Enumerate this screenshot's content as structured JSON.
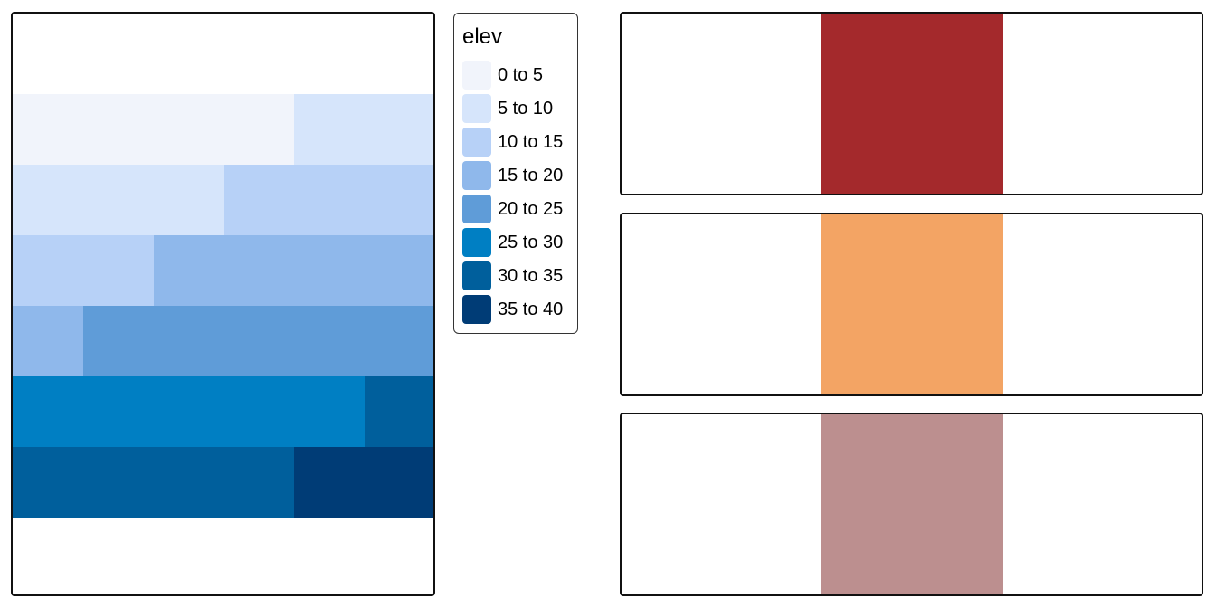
{
  "legend": {
    "title": "elev",
    "items": [
      {
        "label": "0 to 5",
        "color": "#f1f4fb"
      },
      {
        "label": "5 to 10",
        "color": "#d6e5fb"
      },
      {
        "label": "10 to 15",
        "color": "#b7d1f7"
      },
      {
        "label": "15 to 20",
        "color": "#8fb8eb"
      },
      {
        "label": "20 to 25",
        "color": "#5f9cd8"
      },
      {
        "label": "25 to 30",
        "color": "#007fc3"
      },
      {
        "label": "30 to 35",
        "color": "#005f9c"
      },
      {
        "label": "35 to 40",
        "color": "#003c76"
      }
    ]
  },
  "raster": {
    "rows": [
      [
        {
          "class": "0 to 5",
          "span": 4
        },
        {
          "class": "5 to 10",
          "span": 2
        }
      ],
      [
        {
          "class": "5 to 10",
          "span": 3
        },
        {
          "class": "10 to 15",
          "span": 3
        }
      ],
      [
        {
          "class": "10 to 15",
          "span": 2
        },
        {
          "class": "15 to 20",
          "span": 4
        }
      ],
      [
        {
          "class": "15 to 20",
          "span": 1
        },
        {
          "class": "20 to 25",
          "span": 5
        }
      ],
      [
        {
          "class": "25 to 30",
          "span": 5
        },
        {
          "class": "30 to 35",
          "span": 1
        }
      ],
      [
        {
          "class": "30 to 35",
          "span": 4
        },
        {
          "class": "35 to 40",
          "span": 2
        }
      ]
    ]
  },
  "color_strips": [
    {
      "color": "#a4292c"
    },
    {
      "color": "#f3a464"
    },
    {
      "color": "#bc8f8f"
    }
  ]
}
